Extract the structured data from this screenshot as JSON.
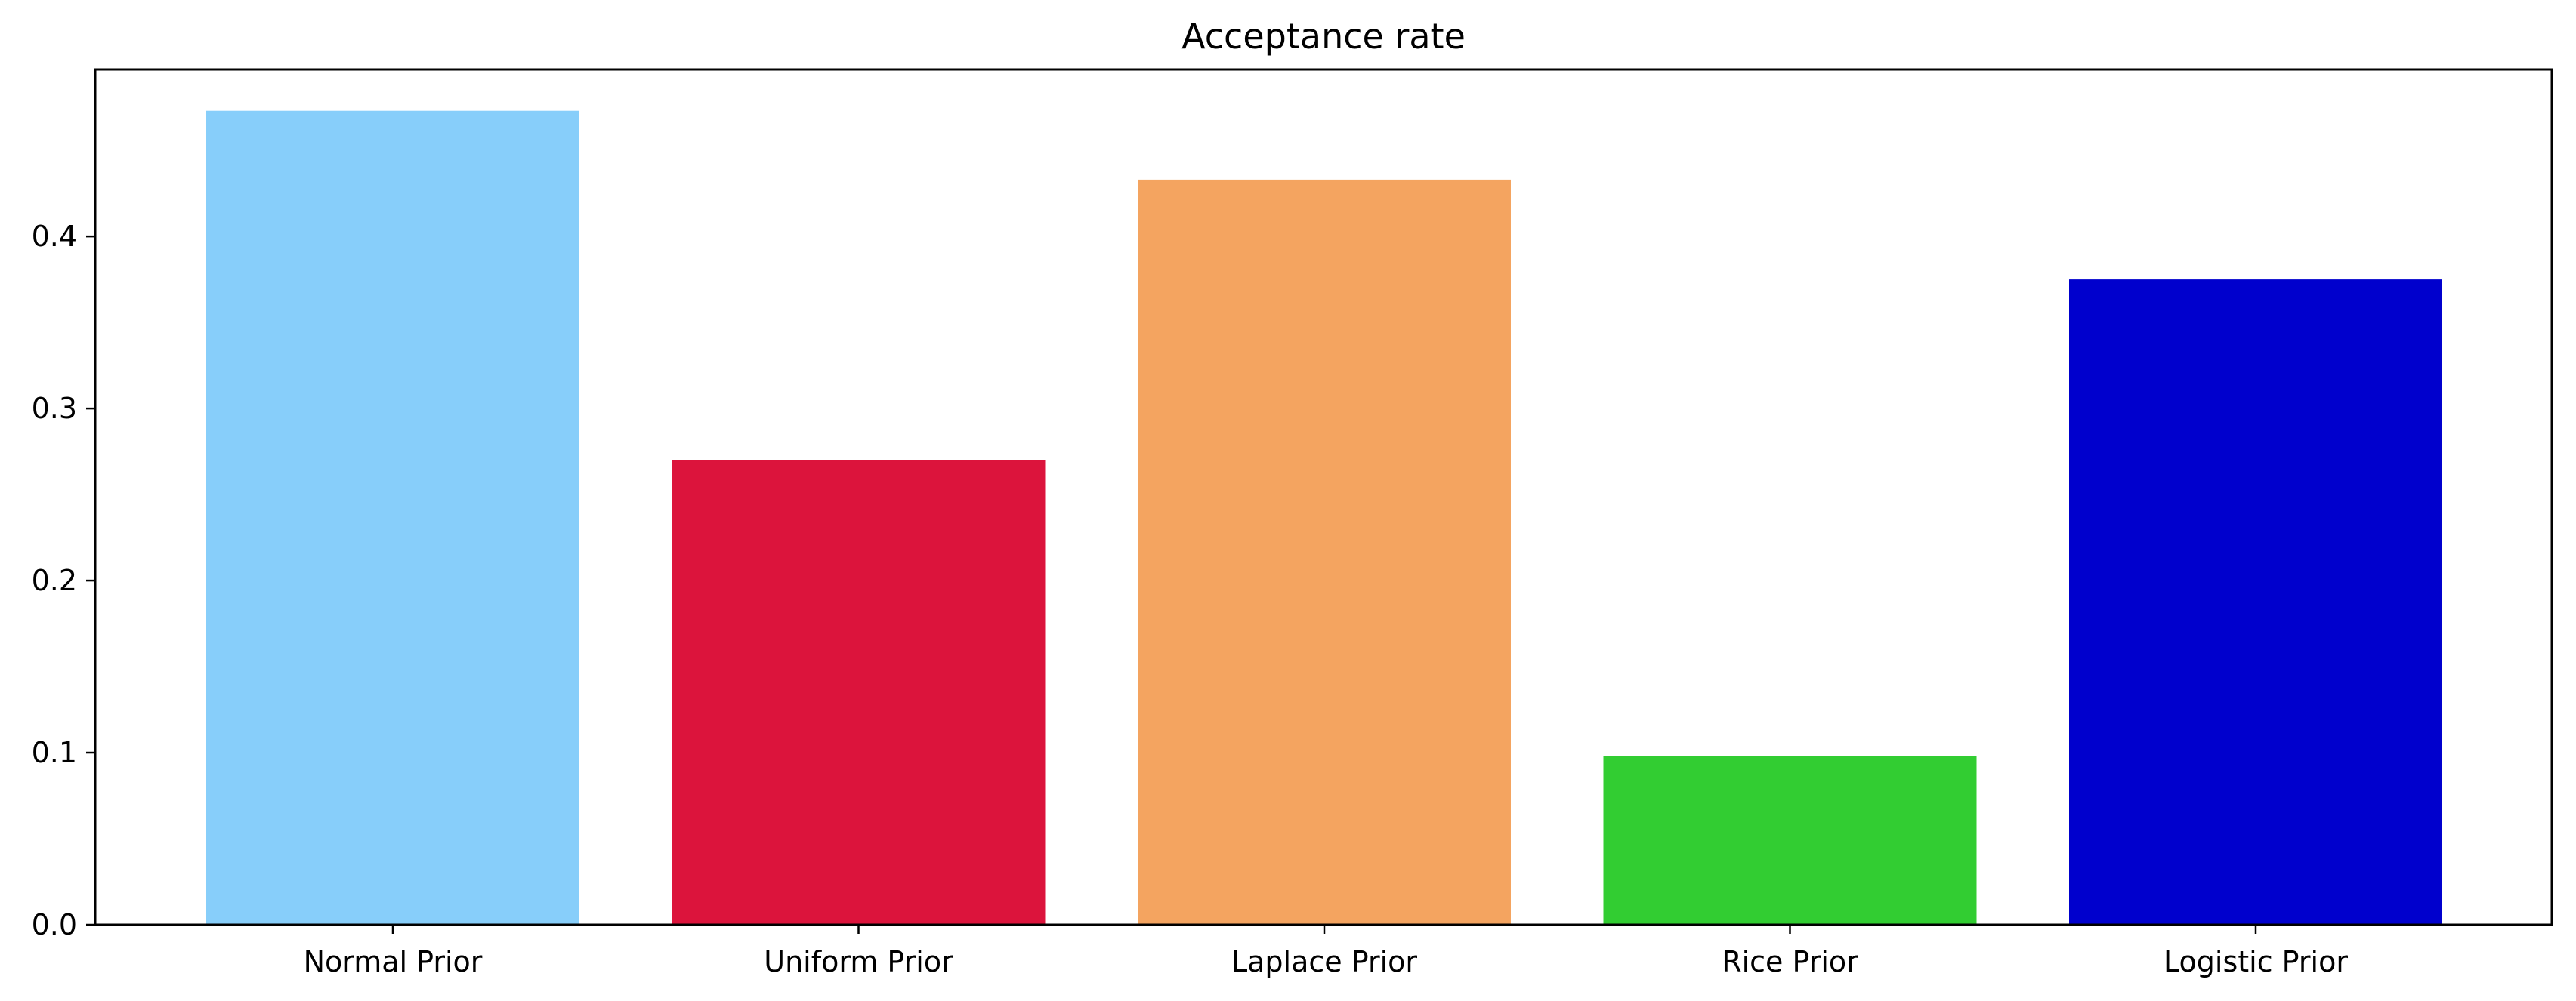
{
  "chart_data": {
    "type": "bar",
    "title": "Acceptance rate",
    "xlabel": "",
    "ylabel": "",
    "categories": [
      "Normal Prior",
      "Uniform Prior",
      "Laplace Prior",
      "Rice Prior",
      "Logistic Prior"
    ],
    "values": [
      0.473,
      0.27,
      0.433,
      0.098,
      0.375
    ],
    "colors": [
      "#87CEFA",
      "#DC143C",
      "#F4A460",
      "#32CD32",
      "#0000CD"
    ],
    "ylim": [
      0,
      0.497
    ],
    "yticks": [
      0.0,
      0.1,
      0.2,
      0.3,
      0.4
    ],
    "ytick_labels": [
      "0.0",
      "0.1",
      "0.2",
      "0.3",
      "0.4"
    ],
    "grid": false,
    "legend": "none"
  }
}
